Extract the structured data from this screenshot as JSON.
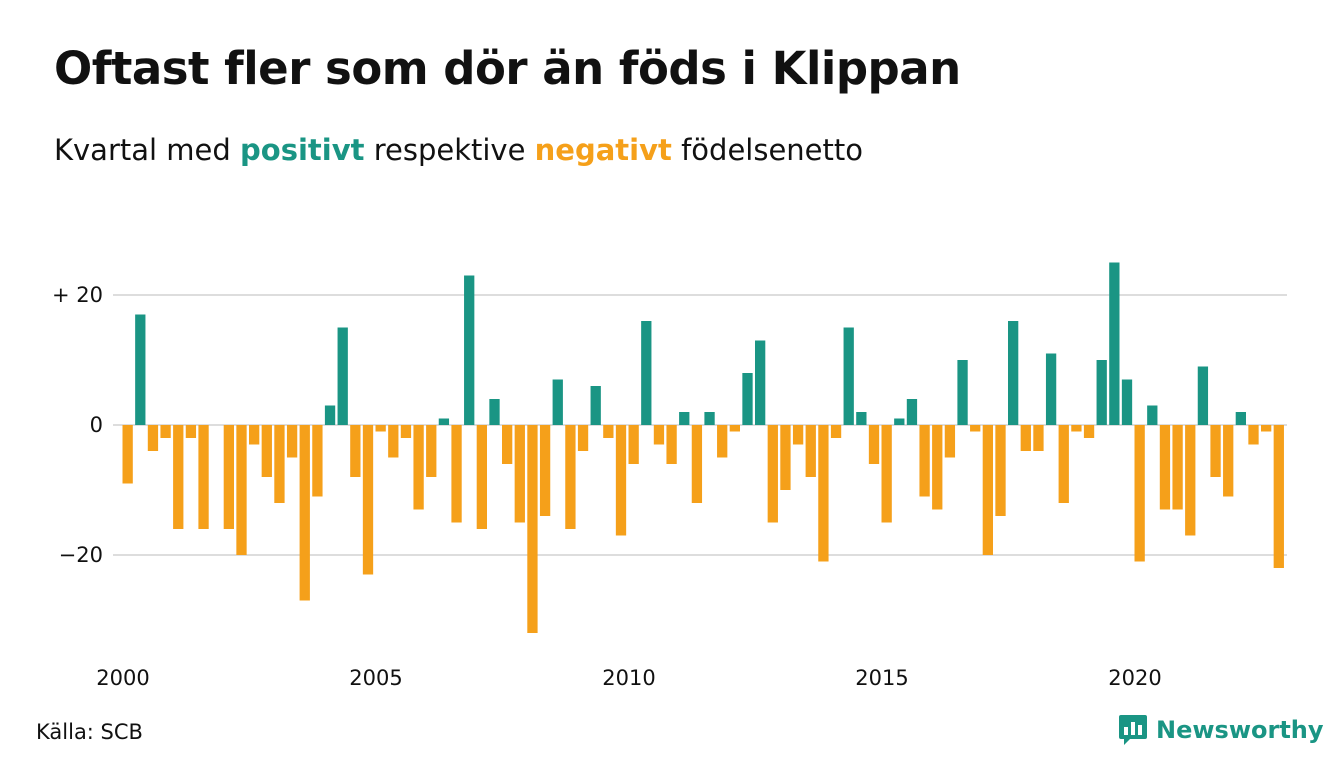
{
  "header": {
    "title": "Oftast fler som dör än föds i Klippan",
    "subtitle_prefix": "Kvartal med ",
    "subtitle_positive": "positivt",
    "subtitle_middle": " respektive ",
    "subtitle_negative": "negativt",
    "subtitle_suffix": " födelsenetto"
  },
  "footer": {
    "source": "Källa: SCB",
    "brand": "Newsworthy",
    "brand_icon": "bar-chart-speech-icon"
  },
  "colors": {
    "positive": "#1a9584",
    "negative": "#f5a01a",
    "grid": "#dddddd"
  },
  "chart_data": {
    "type": "bar",
    "title": "Oftast fler som dör än föds i Klippan",
    "subtitle": "Kvartal med positivt respektive negativt födelsenetto",
    "x_start": "2000 Q1",
    "x_ticks": [
      "2000",
      "2005",
      "2010",
      "2015",
      "2020"
    ],
    "y_ticks": [
      {
        "value": 20,
        "label": "+ 20"
      },
      {
        "value": 0,
        "label": "0"
      },
      {
        "value": -20,
        "label": "−20"
      }
    ],
    "ylim": [
      -33,
      26
    ],
    "grid": true,
    "values": [
      -9,
      17,
      -4,
      -2,
      -16,
      -2,
      -16,
      0,
      -16,
      -20,
      -3,
      -8,
      -12,
      -5,
      -27,
      -11,
      3,
      15,
      -8,
      -23,
      -1,
      -5,
      -2,
      -13,
      -8,
      1,
      -15,
      23,
      -16,
      4,
      -6,
      -15,
      -32,
      -14,
      7,
      -16,
      -4,
      6,
      -2,
      -17,
      -6,
      16,
      -3,
      -6,
      2,
      -12,
      2,
      -5,
      -1,
      8,
      13,
      -15,
      -10,
      -3,
      -8,
      -21,
      -2,
      15,
      2,
      -6,
      -15,
      1,
      4,
      -11,
      -13,
      -5,
      10,
      -1,
      -20,
      -14,
      16,
      -4,
      -4,
      11,
      -12,
      -1,
      -2,
      10,
      25,
      7,
      -21,
      3,
      -13,
      -13,
      -17,
      9,
      -8,
      -11,
      2,
      -3,
      -1,
      -22
    ]
  }
}
